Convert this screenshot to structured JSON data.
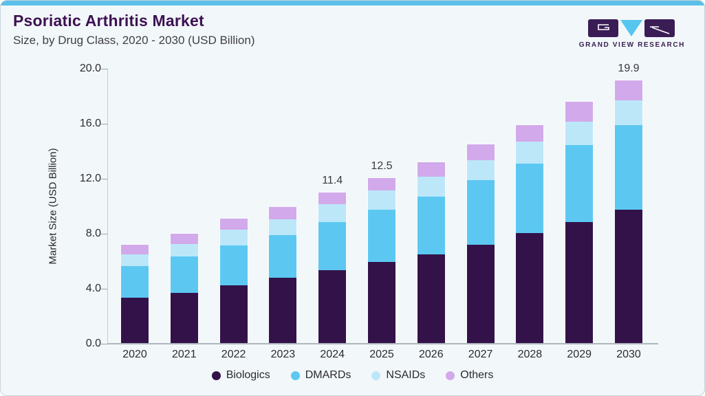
{
  "header": {
    "title": "Psoriatic Arthritis Market",
    "subtitle": "Size, by Drug Class, 2020 - 2030 (USD Billion)",
    "logo_text": "GRAND VIEW RESEARCH"
  },
  "colors": {
    "accent_bar": "#5BC0E8",
    "title": "#3D1152",
    "card_background": "#F2F7FA",
    "biologics": "#331249",
    "dmards": "#5CC8F2",
    "nsaids": "#BCE7F9",
    "others": "#D2A9EA",
    "logo_purple": "#3B1D56",
    "logo_blue": "#56C5F0"
  },
  "chart_data": {
    "type": "bar",
    "stacked": true,
    "title": "Psoriatic Arthritis Market Size, by Drug Class, 2020 - 2030 (USD Billion)",
    "categories": [
      "2020",
      "2021",
      "2022",
      "2023",
      "2024",
      "2025",
      "2026",
      "2027",
      "2028",
      "2029",
      "2030"
    ],
    "series": [
      {
        "name": "Biologics",
        "color": "#331249",
        "values": [
          3.45,
          3.8,
          4.4,
          4.93,
          5.51,
          6.15,
          6.7,
          7.46,
          8.31,
          9.18,
          10.09
        ]
      },
      {
        "name": "DMARDs",
        "color": "#5CC8F2",
        "values": [
          2.37,
          2.74,
          3.01,
          3.27,
          3.68,
          3.94,
          4.39,
          4.9,
          5.27,
          5.84,
          6.43
        ]
      },
      {
        "name": "NSAIDs",
        "color": "#BCE7F9",
        "values": [
          0.9,
          0.98,
          1.17,
          1.2,
          1.32,
          1.47,
          1.5,
          1.5,
          1.7,
          1.77,
          1.86
        ]
      },
      {
        "name": "Others",
        "color": "#D2A9EA",
        "values": [
          0.74,
          0.74,
          0.83,
          0.9,
          0.89,
          0.94,
          1.1,
          1.17,
          1.24,
          1.47,
          1.52
        ]
      }
    ],
    "totals_labeled": {
      "2024": "11.4",
      "2025": "12.5",
      "2030": "19.9"
    },
    "estimated_totals": [
      7.46,
      8.26,
      9.41,
      10.3,
      11.4,
      12.5,
      13.69,
      15.03,
      16.52,
      18.26,
      19.9
    ],
    "xlabel": "",
    "ylabel": "Market Size (USD Billion)",
    "ylim": [
      0,
      20
    ],
    "yticks": [
      "0.0",
      "4.0",
      "8.0",
      "12.0",
      "16.0",
      "20.0"
    ],
    "grid": false,
    "legend_position": "bottom",
    "legend_entries": [
      "Biologics",
      "DMARDs",
      "NSAIDs",
      "Others"
    ]
  }
}
